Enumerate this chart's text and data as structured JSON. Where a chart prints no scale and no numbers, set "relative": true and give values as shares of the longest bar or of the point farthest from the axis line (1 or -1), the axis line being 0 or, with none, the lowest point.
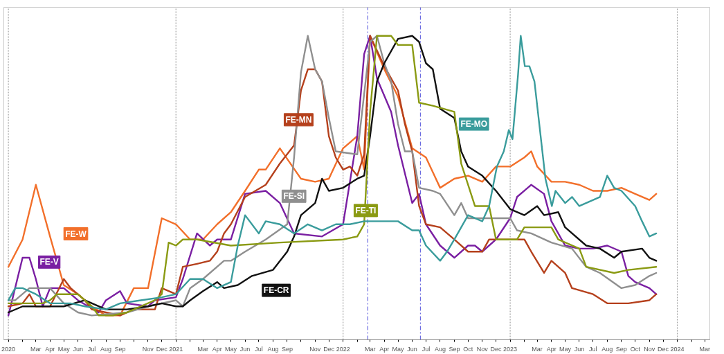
{
  "chart_data": {
    "type": "line",
    "relative": true,
    "xlim": [
      "2019-12-22",
      "2024-03-12"
    ],
    "xticks": [
      {
        "value": "2020-01-01",
        "label": "2020"
      },
      {
        "value": "2020-02-01",
        "label": null
      },
      {
        "value": "2020-03-01",
        "label": "Mar"
      },
      {
        "value": "2020-04-01",
        "label": "Apr"
      },
      {
        "value": "2020-05-01",
        "label": "May"
      },
      {
        "value": "2020-06-01",
        "label": "Jun"
      },
      {
        "value": "2020-07-01",
        "label": "Jul"
      },
      {
        "value": "2020-08-01",
        "label": "Aug"
      },
      {
        "value": "2020-09-01",
        "label": "Sep"
      },
      {
        "value": "2020-10-01",
        "label": null
      },
      {
        "value": "2020-11-01",
        "label": "Nov"
      },
      {
        "value": "2020-12-01",
        "label": "Dec"
      },
      {
        "value": "2021-01-01",
        "label": "2021"
      },
      {
        "value": "2021-02-01",
        "label": null
      },
      {
        "value": "2021-03-01",
        "label": "Mar"
      },
      {
        "value": "2021-04-01",
        "label": "Apr"
      },
      {
        "value": "2021-05-01",
        "label": "May"
      },
      {
        "value": "2021-06-01",
        "label": "Jun"
      },
      {
        "value": "2021-07-01",
        "label": "Jul"
      },
      {
        "value": "2021-08-01",
        "label": "Aug"
      },
      {
        "value": "2021-09-01",
        "label": "Sep"
      },
      {
        "value": "2021-10-01",
        "label": null
      },
      {
        "value": "2021-11-01",
        "label": "Nov"
      },
      {
        "value": "2021-12-01",
        "label": "Dec"
      },
      {
        "value": "2022-01-01",
        "label": "2022"
      },
      {
        "value": "2022-02-01",
        "label": null
      },
      {
        "value": "2022-03-01",
        "label": "Mar"
      },
      {
        "value": "2022-04-01",
        "label": "Apr"
      },
      {
        "value": "2022-05-01",
        "label": "May"
      },
      {
        "value": "2022-06-01",
        "label": "Jun"
      },
      {
        "value": "2022-07-01",
        "label": "Jul"
      },
      {
        "value": "2022-08-01",
        "label": "Aug"
      },
      {
        "value": "2022-09-01",
        "label": "Sep"
      },
      {
        "value": "2022-10-01",
        "label": "Oct"
      },
      {
        "value": "2022-11-01",
        "label": "Nov"
      },
      {
        "value": "2022-12-01",
        "label": "Dec"
      },
      {
        "value": "2023-01-01",
        "label": "2023"
      },
      {
        "value": "2023-02-01",
        "label": null
      },
      {
        "value": "2023-03-01",
        "label": "Mar"
      },
      {
        "value": "2023-04-01",
        "label": "Apr"
      },
      {
        "value": "2023-05-01",
        "label": "May"
      },
      {
        "value": "2023-06-01",
        "label": "Jun"
      },
      {
        "value": "2023-07-01",
        "label": "Jul"
      },
      {
        "value": "2023-08-01",
        "label": "Aug"
      },
      {
        "value": "2023-09-01",
        "label": "Sep"
      },
      {
        "value": "2023-10-01",
        "label": "Oct"
      },
      {
        "value": "2023-11-01",
        "label": "Nov"
      },
      {
        "value": "2023-12-01",
        "label": "Dec"
      },
      {
        "value": "2024-01-01",
        "label": "2024"
      },
      {
        "value": "2024-02-01",
        "label": null
      },
      {
        "value": "2024-03-01",
        "label": "Mar"
      }
    ],
    "ref_lines": [
      {
        "axis": "x",
        "value": "2020-01-01",
        "color": "#a0a0a0",
        "line_style": "dotted"
      },
      {
        "axis": "x",
        "value": "2021-01-01",
        "color": "#a0a0a0",
        "line_style": "dotted"
      },
      {
        "axis": "x",
        "value": "2022-01-01",
        "color": "#a0a0a0",
        "line_style": "dotted"
      },
      {
        "axis": "x",
        "value": "2022-02-24",
        "color": "#6a6ae0",
        "line_style": "dashed"
      },
      {
        "axis": "x",
        "value": "2022-06-19",
        "color": "#6a6ae0",
        "line_style": "dashed"
      },
      {
        "axis": "x",
        "value": "2023-01-01",
        "color": "#a0a0a0",
        "line_style": "dotted"
      },
      {
        "axis": "x",
        "value": "2024-01-01",
        "color": "#a0a0a0",
        "line_style": "dotted"
      }
    ],
    "series": [
      {
        "name": "FE-W",
        "color": "#f26f2a",
        "x": [
          "2020-01-01",
          "2020-02-01",
          "2020-03-01",
          "2020-04-01",
          "2020-05-01",
          "2020-06-01",
          "2020-07-01",
          "2020-08-01",
          "2020-09-01",
          "2020-10-01",
          "2020-11-01",
          "2020-12-01",
          "2021-01-01",
          "2021-02-01",
          "2021-03-01",
          "2021-04-01",
          "2021-05-01",
          "2021-06-01",
          "2021-07-01",
          "2021-07-16",
          "2021-08-16",
          "2021-10-01",
          "2021-11-01",
          "2021-12-01",
          "2022-01-01",
          "2022-02-01",
          "2022-02-16",
          "2022-03-01",
          "2022-04-01",
          "2022-05-01",
          "2022-06-01",
          "2022-07-01",
          "2022-08-01",
          "2022-09-01",
          "2022-10-01",
          "2022-11-01",
          "2022-12-01",
          "2023-01-01",
          "2023-02-01",
          "2023-02-16",
          "2023-03-01",
          "2023-04-01",
          "2023-05-01",
          "2023-06-01",
          "2023-07-01",
          "2023-08-01",
          "2023-09-01",
          "2023-10-01",
          "2023-11-01",
          "2023-11-16"
        ],
        "values": [
          0.24,
          0.33,
          0.51,
          0.34,
          0.18,
          0.15,
          0.11,
          0.08,
          0.08,
          0.17,
          0.17,
          0.4,
          0.38,
          0.33,
          0.33,
          0.38,
          0.42,
          0.49,
          0.56,
          0.56,
          0.63,
          0.53,
          0.52,
          0.53,
          0.63,
          0.67,
          0.56,
          1.0,
          0.89,
          0.8,
          0.63,
          0.6,
          0.5,
          0.53,
          0.54,
          0.52,
          0.57,
          0.57,
          0.6,
          0.62,
          0.57,
          0.52,
          0.52,
          0.51,
          0.49,
          0.49,
          0.5,
          0.48,
          0.46,
          0.48
        ]
      },
      {
        "name": "FE-V",
        "color": "#7a1fa2",
        "x": [
          "2020-01-01",
          "2020-02-01",
          "2020-02-16",
          "2020-03-01",
          "2020-03-16",
          "2020-04-01",
          "2020-05-01",
          "2020-06-01",
          "2020-07-16",
          "2020-08-01",
          "2020-09-01",
          "2020-09-16",
          "2020-11-01",
          "2020-11-16",
          "2021-01-01",
          "2021-01-16",
          "2021-02-16",
          "2021-03-16",
          "2021-04-01",
          "2021-05-01",
          "2021-06-01",
          "2021-07-16",
          "2021-08-16",
          "2021-09-16",
          "2021-11-16",
          "2022-01-01",
          "2022-02-01",
          "2022-02-16",
          "2022-03-01",
          "2022-03-16",
          "2022-04-16",
          "2022-05-01",
          "2022-06-01",
          "2022-06-16",
          "2022-07-01",
          "2022-08-01",
          "2022-09-01",
          "2022-10-01",
          "2022-10-16",
          "2022-11-01",
          "2022-12-01",
          "2023-01-01",
          "2023-01-16",
          "2023-02-16",
          "2023-03-16",
          "2023-04-01",
          "2023-05-01",
          "2023-06-01",
          "2023-07-01",
          "2023-08-01",
          "2023-09-01",
          "2023-09-16",
          "2023-10-01",
          "2023-11-01",
          "2023-11-16"
        ],
        "values": [
          0.08,
          0.27,
          0.27,
          0.2,
          0.11,
          0.17,
          0.17,
          0.13,
          0.09,
          0.13,
          0.16,
          0.12,
          0.11,
          0.13,
          0.14,
          0.2,
          0.35,
          0.31,
          0.33,
          0.33,
          0.48,
          0.49,
          0.45,
          0.35,
          0.34,
          0.38,
          0.67,
          0.94,
          1.0,
          0.86,
          0.75,
          0.64,
          0.45,
          0.48,
          0.38,
          0.31,
          0.27,
          0.31,
          0.31,
          0.29,
          0.33,
          0.4,
          0.47,
          0.51,
          0.48,
          0.39,
          0.31,
          0.3,
          0.3,
          0.31,
          0.29,
          0.21,
          0.19,
          0.17,
          0.15
        ]
      },
      {
        "name": "FE-MN",
        "color": "#b5401c",
        "x": [
          "2020-01-01",
          "2020-02-01",
          "2020-02-16",
          "2020-03-01",
          "2020-04-01",
          "2020-05-01",
          "2020-05-16",
          "2020-06-16",
          "2020-07-01",
          "2020-08-01",
          "2020-09-01",
          "2020-10-01",
          "2020-11-16",
          "2020-12-01",
          "2021-01-01",
          "2021-01-16",
          "2021-02-16",
          "2021-03-16",
          "2021-04-01",
          "2021-04-16",
          "2021-05-01",
          "2021-06-01",
          "2021-07-16",
          "2021-08-16",
          "2021-09-16",
          "2021-10-01",
          "2021-10-16",
          "2021-11-01",
          "2021-11-16",
          "2021-12-01",
          "2021-12-16",
          "2022-01-01",
          "2022-01-16",
          "2022-02-01",
          "2022-02-16",
          "2022-03-01",
          "2022-04-01",
          "2022-05-01",
          "2022-05-16",
          "2022-06-01",
          "2022-06-16",
          "2022-07-01",
          "2022-08-01",
          "2022-09-01",
          "2022-10-01",
          "2022-11-01",
          "2022-11-16",
          "2023-02-01",
          "2023-02-16",
          "2023-03-16",
          "2023-04-01",
          "2023-05-01",
          "2023-05-16",
          "2023-07-01",
          "2023-08-01",
          "2023-09-16",
          "2023-11-01",
          "2023-11-16"
        ],
        "values": [
          0.11,
          0.12,
          0.15,
          0.11,
          0.11,
          0.2,
          0.17,
          0.13,
          0.1,
          0.09,
          0.08,
          0.1,
          0.1,
          0.17,
          0.15,
          0.24,
          0.25,
          0.26,
          0.29,
          0.35,
          0.38,
          0.47,
          0.51,
          0.58,
          0.64,
          0.82,
          0.89,
          0.89,
          0.85,
          0.67,
          0.6,
          0.56,
          0.57,
          0.54,
          0.61,
          1.0,
          0.9,
          0.82,
          0.71,
          0.62,
          0.44,
          0.38,
          0.37,
          0.33,
          0.29,
          0.29,
          0.33,
          0.33,
          0.29,
          0.22,
          0.26,
          0.22,
          0.17,
          0.15,
          0.12,
          0.12,
          0.13,
          0.15
        ]
      },
      {
        "name": "FE-SI",
        "color": "#8f8f8f",
        "x": [
          "2020-01-01",
          "2020-01-16",
          "2020-02-16",
          "2020-04-01",
          "2020-05-01",
          "2020-06-01",
          "2020-07-01",
          "2020-09-16",
          "2020-11-01",
          "2021-01-01",
          "2021-01-16",
          "2021-02-01",
          "2021-03-01",
          "2021-04-16",
          "2021-05-01",
          "2021-06-01",
          "2021-07-16",
          "2021-09-01",
          "2021-09-16",
          "2021-10-01",
          "2021-10-16",
          "2021-11-01",
          "2021-11-16",
          "2021-12-01",
          "2021-12-16",
          "2022-02-01",
          "2022-03-01",
          "2022-03-16",
          "2022-04-01",
          "2022-04-16",
          "2022-05-01",
          "2022-05-16",
          "2022-06-01",
          "2022-06-16",
          "2022-07-16",
          "2022-08-01",
          "2022-09-01",
          "2022-09-16",
          "2022-10-01",
          "2022-11-01",
          "2023-01-01",
          "2023-01-16",
          "2023-02-16",
          "2023-04-01",
          "2023-05-16",
          "2023-06-16",
          "2023-07-16",
          "2023-09-01",
          "2023-10-01",
          "2023-11-01",
          "2023-11-16"
        ],
        "values": [
          0.13,
          0.13,
          0.17,
          0.17,
          0.12,
          0.09,
          0.08,
          0.09,
          0.11,
          0.13,
          0.11,
          0.17,
          0.2,
          0.26,
          0.26,
          0.29,
          0.33,
          0.38,
          0.6,
          0.88,
          1.0,
          0.89,
          0.85,
          0.73,
          0.62,
          0.61,
          0.98,
          1.0,
          0.91,
          0.85,
          0.71,
          0.62,
          0.62,
          0.5,
          0.49,
          0.48,
          0.41,
          0.45,
          0.4,
          0.4,
          0.4,
          0.36,
          0.35,
          0.32,
          0.3,
          0.24,
          0.22,
          0.17,
          0.18,
          0.21,
          0.22
        ]
      },
      {
        "name": "FE-CR",
        "color": "#111111",
        "x": [
          "2020-01-01",
          "2020-02-01",
          "2020-03-16",
          "2020-05-01",
          "2020-06-16",
          "2020-08-01",
          "2020-09-16",
          "2020-11-01",
          "2020-12-01",
          "2021-01-01",
          "2021-01-16",
          "2021-02-01",
          "2021-03-01",
          "2021-04-01",
          "2021-04-16",
          "2021-05-16",
          "2021-06-16",
          "2021-08-01",
          "2021-09-01",
          "2021-09-16",
          "2021-10-01",
          "2021-11-01",
          "2021-11-16",
          "2021-12-01",
          "2022-01-01",
          "2022-02-01",
          "2022-02-16",
          "2022-03-01",
          "2022-03-16",
          "2022-04-01",
          "2022-05-01",
          "2022-06-01",
          "2022-06-16",
          "2022-07-01",
          "2022-07-16",
          "2022-08-01",
          "2022-09-01",
          "2022-09-16",
          "2022-10-01",
          "2022-11-01",
          "2022-12-01",
          "2023-01-01",
          "2023-02-01",
          "2023-03-01",
          "2023-03-16",
          "2023-04-16",
          "2023-05-01",
          "2023-06-16",
          "2023-07-16",
          "2023-08-16",
          "2023-09-01",
          "2023-10-16",
          "2023-11-01",
          "2023-11-16"
        ],
        "values": [
          0.09,
          0.11,
          0.11,
          0.11,
          0.13,
          0.1,
          0.1,
          0.11,
          0.12,
          0.11,
          0.11,
          0.13,
          0.16,
          0.19,
          0.17,
          0.18,
          0.21,
          0.23,
          0.29,
          0.34,
          0.41,
          0.45,
          0.53,
          0.49,
          0.5,
          0.53,
          0.54,
          0.67,
          0.85,
          0.91,
          0.99,
          1.0,
          0.98,
          0.91,
          0.89,
          0.76,
          0.73,
          0.62,
          0.57,
          0.54,
          0.49,
          0.43,
          0.41,
          0.44,
          0.41,
          0.42,
          0.37,
          0.31,
          0.3,
          0.27,
          0.29,
          0.3,
          0.27,
          0.26
        ]
      },
      {
        "name": "FE-TI",
        "color": "#8a9a12",
        "x": [
          "2020-01-01",
          "2020-03-16",
          "2020-04-01",
          "2020-04-16",
          "2020-06-01",
          "2020-07-01",
          "2020-07-16",
          "2020-08-16",
          "2020-09-16",
          "2020-10-16",
          "2020-11-16",
          "2020-12-01",
          "2020-12-16",
          "2021-01-01",
          "2021-01-16",
          "2021-02-16",
          "2021-05-01",
          "2021-08-16",
          "2022-01-01",
          "2022-02-01",
          "2022-02-16",
          "2022-03-01",
          "2022-03-16",
          "2022-04-16",
          "2022-05-01",
          "2022-06-01",
          "2022-06-16",
          "2022-07-16",
          "2022-09-01",
          "2022-09-16",
          "2022-10-01",
          "2022-10-16",
          "2022-11-16",
          "2022-12-01",
          "2023-01-16",
          "2023-02-01",
          "2023-04-01",
          "2023-04-16",
          "2023-06-01",
          "2023-06-16",
          "2023-08-16",
          "2023-09-16",
          "2023-11-16"
        ],
        "values": [
          0.12,
          0.12,
          0.13,
          0.15,
          0.15,
          0.11,
          0.08,
          0.08,
          0.09,
          0.11,
          0.13,
          0.15,
          0.32,
          0.31,
          0.33,
          0.33,
          0.31,
          0.32,
          0.33,
          0.34,
          0.38,
          0.75,
          1.0,
          1.0,
          0.97,
          0.97,
          0.78,
          0.77,
          0.75,
          0.58,
          0.51,
          0.44,
          0.44,
          0.33,
          0.33,
          0.37,
          0.37,
          0.33,
          0.3,
          0.24,
          0.22,
          0.23,
          0.24
        ]
      },
      {
        "name": "FE-MO",
        "color": "#3a9c9c",
        "x": [
          "2020-01-01",
          "2020-01-16",
          "2020-02-01",
          "2020-03-01",
          "2020-04-01",
          "2020-05-01",
          "2020-05-16",
          "2020-06-16",
          "2020-08-01",
          "2020-09-01",
          "2020-10-16",
          "2020-12-01",
          "2021-01-01",
          "2021-02-01",
          "2021-03-01",
          "2021-04-01",
          "2021-05-01",
          "2021-05-16",
          "2021-06-01",
          "2021-07-01",
          "2021-07-16",
          "2021-08-16",
          "2021-09-16",
          "2021-10-16",
          "2021-11-16",
          "2021-12-16",
          "2022-01-16",
          "2022-02-16",
          "2022-03-16",
          "2022-05-01",
          "2022-06-01",
          "2022-06-16",
          "2022-07-01",
          "2022-08-01",
          "2022-08-16",
          "2022-09-01",
          "2022-09-16",
          "2022-10-01",
          "2022-11-01",
          "2022-11-16",
          "2022-12-03",
          "2022-12-18",
          "2022-12-29",
          "2023-01-06",
          "2023-01-18",
          "2023-01-24",
          "2023-02-02",
          "2023-02-12",
          "2023-02-23",
          "2023-03-04",
          "2023-03-19",
          "2023-04-02",
          "2023-04-10",
          "2023-05-01",
          "2023-05-16",
          "2023-06-01",
          "2023-07-16",
          "2023-08-01",
          "2023-08-16",
          "2023-09-01",
          "2023-10-01",
          "2023-10-16",
          "2023-11-01",
          "2023-11-16"
        ],
        "values": [
          0.13,
          0.17,
          0.17,
          0.15,
          0.12,
          0.12,
          0.12,
          0.11,
          0.1,
          0.12,
          0.13,
          0.14,
          0.15,
          0.2,
          0.2,
          0.17,
          0.19,
          0.31,
          0.41,
          0.35,
          0.39,
          0.38,
          0.35,
          0.38,
          0.36,
          0.38,
          0.38,
          0.39,
          0.39,
          0.39,
          0.36,
          0.36,
          0.31,
          0.26,
          0.29,
          0.33,
          0.37,
          0.41,
          0.39,
          0.44,
          0.57,
          0.62,
          0.69,
          0.66,
          0.87,
          1.0,
          0.9,
          0.9,
          0.85,
          0.73,
          0.53,
          0.44,
          0.49,
          0.45,
          0.47,
          0.44,
          0.47,
          0.54,
          0.5,
          0.49,
          0.44,
          0.39,
          0.34,
          0.35
        ]
      }
    ]
  }
}
